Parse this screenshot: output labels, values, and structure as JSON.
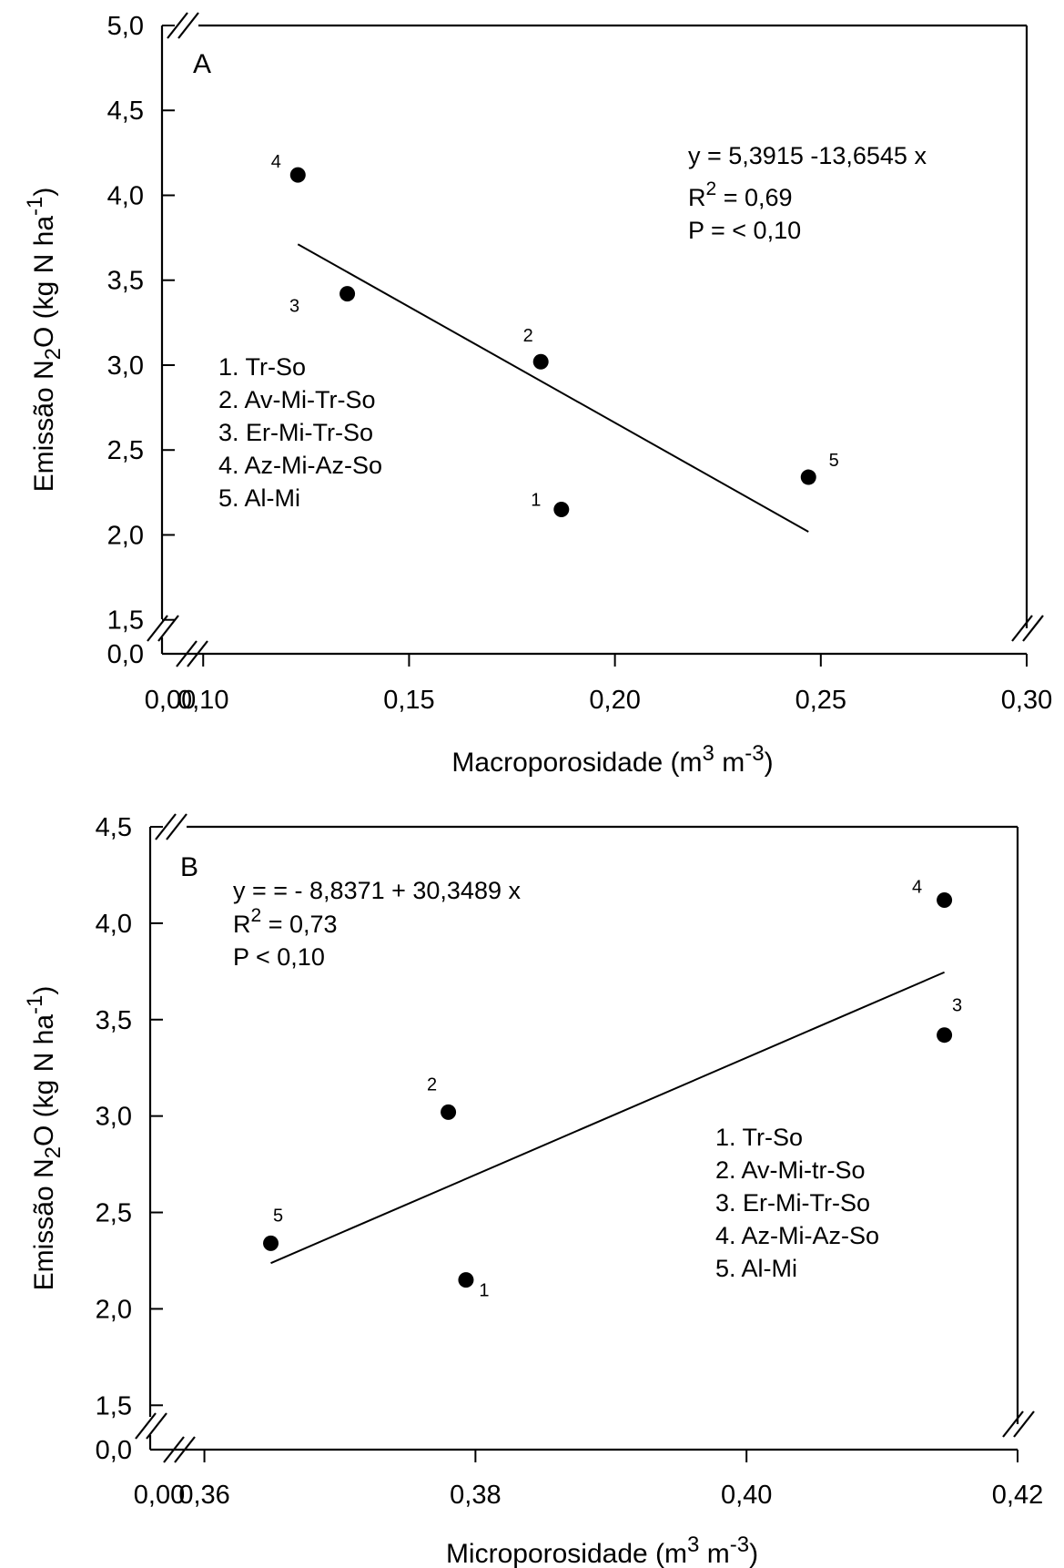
{
  "chart_data": [
    {
      "type": "scatter",
      "panel_label": "A",
      "xlabel": {
        "main": "Macroporosidade (m",
        "sup1": "3",
        "mid": " m",
        "sup2": "-3",
        "end": ")"
      },
      "ylabel": {
        "main": "Emissão N",
        "sub": "2",
        "mid": "O (kg N ha",
        "sup": "-1",
        "end": ")"
      },
      "x_break_tick": "0,00",
      "y_break_tick": "0,0",
      "x_ticks": [
        {
          "v": 0.1,
          "label": "0,10"
        },
        {
          "v": 0.15,
          "label": "0,15"
        },
        {
          "v": 0.2,
          "label": "0,20"
        },
        {
          "v": 0.25,
          "label": "0,25"
        },
        {
          "v": 0.3,
          "label": "0,30"
        }
      ],
      "y_ticks": [
        {
          "v": 1.5,
          "label": "1,5"
        },
        {
          "v": 2.0,
          "label": "2,0"
        },
        {
          "v": 2.5,
          "label": "2,5"
        },
        {
          "v": 3.0,
          "label": "3,0"
        },
        {
          "v": 3.5,
          "label": "3,5"
        },
        {
          "v": 4.0,
          "label": "4,0"
        },
        {
          "v": 4.5,
          "label": "4,5"
        },
        {
          "v": 5.0,
          "label": "5,0"
        }
      ],
      "xlim": [
        0.09,
        0.3
      ],
      "ylim": [
        1.3,
        5.0
      ],
      "points": [
        {
          "id": "1",
          "x": 0.187,
          "y": 2.15
        },
        {
          "id": "2",
          "x": 0.182,
          "y": 3.02
        },
        {
          "id": "3",
          "x": 0.135,
          "y": 3.42
        },
        {
          "id": "4",
          "x": 0.123,
          "y": 4.12
        },
        {
          "id": "5",
          "x": 0.247,
          "y": 2.34
        }
      ],
      "fit": {
        "intercept": 5.3915,
        "slope": -13.6545,
        "x_range": [
          0.123,
          0.247
        ]
      },
      "equation": {
        "line1": "y = 5,3915 -13,6545 x",
        "r2_prefix": "R",
        "r2_sup": "2",
        "r2_value": " = 0,69",
        "p": "P = < 0,10"
      },
      "legend": [
        "1. Tr-So",
        "2. Av-Mi-Tr-So",
        "3. Er-Mi-Tr-So",
        "4. Az-Mi-Az-So",
        "5. Al-Mi"
      ]
    },
    {
      "type": "scatter",
      "panel_label": "B",
      "xlabel": {
        "main": "Microporosidade (m",
        "sup1": "3",
        "mid": " m",
        "sup2": "-3",
        "end": ")"
      },
      "ylabel": {
        "main": "Emissão N",
        "sub": "2",
        "mid": "O (kg N ha",
        "sup": "-1",
        "end": ")"
      },
      "x_break_tick": "0,00",
      "y_break_tick": "0,0",
      "x_ticks": [
        {
          "v": 0.36,
          "label": "0,36"
        },
        {
          "v": 0.38,
          "label": "0,38"
        },
        {
          "v": 0.4,
          "label": "0,40"
        },
        {
          "v": 0.42,
          "label": "0,42"
        }
      ],
      "y_ticks": [
        {
          "v": 1.5,
          "label": "1,5"
        },
        {
          "v": 2.0,
          "label": "2,0"
        },
        {
          "v": 2.5,
          "label": "2,5"
        },
        {
          "v": 3.0,
          "label": "3,0"
        },
        {
          "v": 3.5,
          "label": "3,5"
        },
        {
          "v": 4.0,
          "label": "4,0"
        },
        {
          "v": 4.5,
          "label": "4,5"
        }
      ],
      "xlim": [
        0.356,
        0.42
      ],
      "ylim": [
        1.27,
        4.5
      ],
      "points": [
        {
          "id": "1",
          "x": 0.3793,
          "y": 2.15
        },
        {
          "id": "2",
          "x": 0.378,
          "y": 3.02
        },
        {
          "id": "3",
          "x": 0.4146,
          "y": 3.42
        },
        {
          "id": "4",
          "x": 0.4146,
          "y": 4.12
        },
        {
          "id": "5",
          "x": 0.3649,
          "y": 2.34
        }
      ],
      "fit": {
        "intercept": -8.8371,
        "slope": 30.3489,
        "x_range": [
          0.3649,
          0.4146
        ]
      },
      "equation": {
        "line1": "y =  = - 8,8371 + 30,3489 x",
        "r2_prefix": "R",
        "r2_sup": "2",
        "r2_value": " = 0,73",
        "p": "P < 0,10"
      },
      "legend": [
        "1. Tr-So",
        "2. Av-Mi-tr-So",
        "3. Er-Mi-Tr-So",
        "4. Az-Mi-Az-So",
        "5. Al-Mi"
      ]
    }
  ]
}
